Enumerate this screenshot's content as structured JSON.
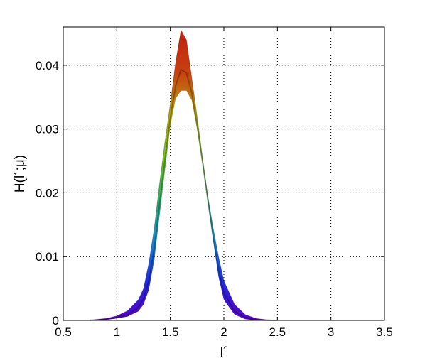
{
  "chart_data": {
    "type": "area",
    "title": "",
    "xlabel": "l´",
    "ylabel": "H(l´;μ)",
    "xlim": [
      0.5,
      3.5
    ],
    "ylim": [
      0,
      0.046
    ],
    "x_ticks": [
      0.5,
      1,
      1.5,
      2,
      2.5,
      3,
      3.5
    ],
    "x_tick_labels": [
      "0.5",
      "1",
      "1.5",
      "2",
      "2.5",
      "3",
      "3.5"
    ],
    "y_ticks": [
      0,
      0.01,
      0.02,
      0.03,
      0.04
    ],
    "y_tick_labels": [
      "0",
      "0.01",
      "0.02",
      "0.03",
      "0.04"
    ],
    "grid": true,
    "grid_style": "dotted",
    "colormap": "jet",
    "colormap_stops": [
      "#5a00c8",
      "#1c2ee0",
      "#1890c8",
      "#38b060",
      "#78c020",
      "#b8a010",
      "#c84010",
      "#c02010"
    ],
    "series": [
      {
        "x": [
          0.75,
          0.9,
          1.0,
          1.1,
          1.2,
          1.25,
          1.3,
          1.35,
          1.4,
          1.45,
          1.5,
          1.55,
          1.6,
          1.65,
          1.7,
          1.75,
          1.8,
          1.85,
          1.9,
          1.95,
          2.0,
          2.1,
          2.2,
          2.3,
          2.4,
          2.5
        ],
        "y_upper": [
          5e-05,
          0.0003,
          0.0007,
          0.0015,
          0.0032,
          0.005,
          0.009,
          0.0145,
          0.0215,
          0.028,
          0.034,
          0.0405,
          0.0455,
          0.044,
          0.038,
          0.032,
          0.0255,
          0.0195,
          0.0145,
          0.01,
          0.0062,
          0.0025,
          0.0009,
          0.0003,
          0.0001,
          0.0
        ],
        "y_lower": [
          0.0,
          0.0001,
          0.0003,
          0.0006,
          0.0014,
          0.0025,
          0.0048,
          0.0095,
          0.0165,
          0.0235,
          0.0305,
          0.0348,
          0.036,
          0.036,
          0.0345,
          0.03,
          0.0245,
          0.0185,
          0.0125,
          0.0068,
          0.0032,
          0.0009,
          0.0002,
          0.0,
          0.0,
          0.0
        ]
      }
    ]
  }
}
